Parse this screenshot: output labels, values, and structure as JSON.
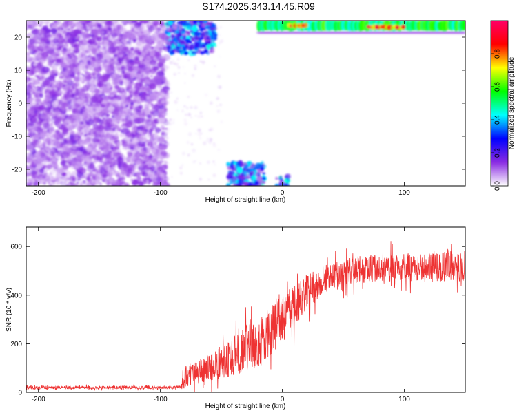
{
  "title": "S174.2025.343.14.45.R09",
  "chart_data": [
    {
      "type": "heatmap",
      "xlabel": "Height of straight line (km)",
      "ylabel": "Frequency (Hz)",
      "xlim": [
        -210,
        150
      ],
      "ylim": [
        -25,
        25
      ],
      "x_ticks": [
        -200,
        -100,
        0,
        100
      ],
      "y_ticks": [
        -20,
        -10,
        0,
        10,
        20
      ],
      "colorbar": {
        "label": "Normalized spectral amplitude",
        "range": [
          0,
          1
        ],
        "ticks": [
          "0.0",
          "0.2",
          "0.4",
          "0.6",
          "0.8"
        ],
        "colormap": [
          "#ffffff",
          "#8a2be2",
          "#0000ff",
          "#00ffff",
          "#00ff00",
          "#ffff00",
          "#ff0000",
          "#ff0066"
        ]
      },
      "features": [
        {
          "region": "noise",
          "x": [
            -210,
            -95
          ],
          "y": [
            -25,
            25
          ],
          "amplitude": 0.1
        },
        {
          "region": "upper-burst",
          "x": [
            -95,
            -55
          ],
          "y": [
            15,
            25
          ],
          "amplitude": 0.35
        },
        {
          "region": "lower-burst",
          "x": [
            -45,
            -15
          ],
          "y": [
            -25,
            -18
          ],
          "amplitude": 0.35
        },
        {
          "region": "zero-point",
          "x": [
            -5,
            5
          ],
          "y": [
            -25,
            -22
          ],
          "amplitude": 0.4
        },
        {
          "region": "carrier-line",
          "x": [
            -20,
            150
          ],
          "y": [
            22,
            25
          ],
          "amplitude": 0.6
        },
        {
          "region": "carrier-peak",
          "x": [
            70,
            100
          ],
          "y": [
            22.5,
            23.5
          ],
          "amplitude": 0.95
        },
        {
          "region": "carrier-peak",
          "x": [
            5,
            20
          ],
          "y": [
            23,
            24
          ],
          "amplitude": 0.9
        }
      ]
    },
    {
      "type": "line",
      "xlabel": "Height of straight line (km)",
      "ylabel": "SNR (10 * v/v)",
      "xlim": [
        -210,
        150
      ],
      "ylim": [
        0,
        680
      ],
      "x_ticks": [
        -200,
        -100,
        0,
        100
      ],
      "y_ticks": [
        0,
        200,
        400,
        600
      ],
      "series": [
        {
          "color": "#ee3333",
          "envelope_x": [
            -210,
            -83,
            -80,
            -60,
            -40,
            -20,
            0,
            10,
            20,
            30,
            40,
            60,
            80,
            100,
            120,
            150
          ],
          "envelope_mean": [
            20,
            20,
            60,
            100,
            150,
            210,
            300,
            360,
            410,
            450,
            480,
            505,
            510,
            515,
            515,
            520
          ],
          "envelope_amp": [
            8,
            8,
            60,
            70,
            100,
            140,
            120,
            110,
            90,
            80,
            70,
            70,
            70,
            70,
            75,
            80
          ]
        }
      ]
    }
  ]
}
